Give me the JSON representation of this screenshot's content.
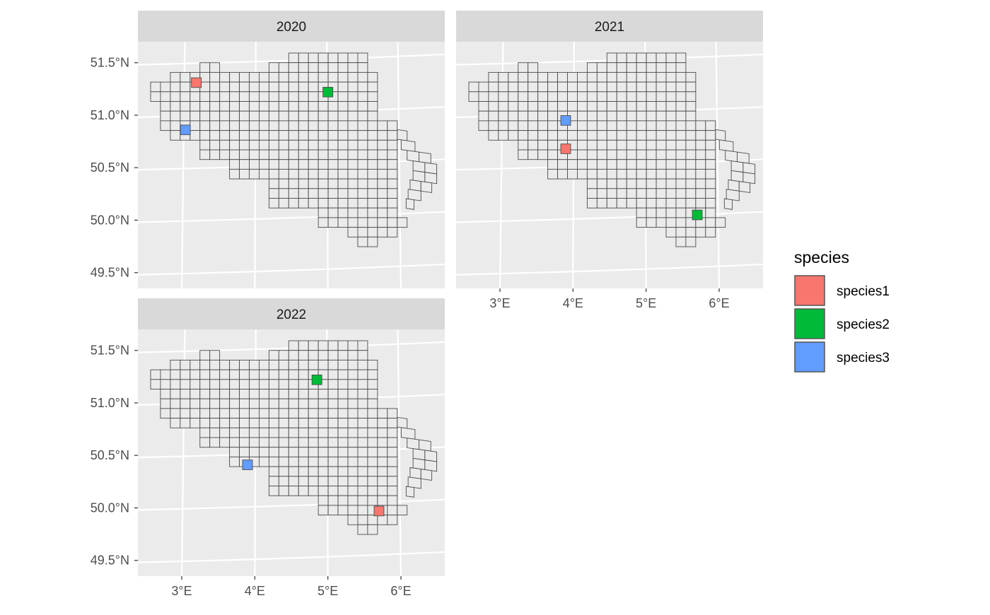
{
  "chart_data": {
    "type": "map",
    "title": "",
    "subtitle": "",
    "xlabel": "",
    "ylabel": "",
    "facet_var": "year",
    "facets": [
      "2020",
      "2021",
      "2022"
    ],
    "x_ticks": [
      "3°E",
      "4°E",
      "5°E",
      "6°E"
    ],
    "y_ticks": [
      "51.5°N",
      "51.0°N",
      "50.5°N",
      "50.0°N",
      "49.5°N"
    ],
    "xlim": [
      2.4,
      6.6
    ],
    "ylim": [
      49.35,
      51.7
    ],
    "legend": {
      "title": "species",
      "position": "right",
      "entries": [
        {
          "label": "species1",
          "color": "#F8766D"
        },
        {
          "label": "species2",
          "color": "#00BA38"
        },
        {
          "label": "species3",
          "color": "#619CFF"
        }
      ]
    },
    "occupied_cells": [
      {
        "year": "2020",
        "species": "species1",
        "lon": 3.2,
        "lat": 51.31
      },
      {
        "year": "2020",
        "species": "species2",
        "lon": 5.0,
        "lat": 51.22
      },
      {
        "year": "2020",
        "species": "species3",
        "lon": 3.05,
        "lat": 50.86
      },
      {
        "year": "2021",
        "species": "species1",
        "lon": 3.9,
        "lat": 50.68
      },
      {
        "year": "2021",
        "species": "species2",
        "lon": 5.7,
        "lat": 50.05
      },
      {
        "year": "2021",
        "species": "species3",
        "lon": 3.9,
        "lat": 50.95
      },
      {
        "year": "2022",
        "species": "species1",
        "lon": 5.7,
        "lat": 49.97
      },
      {
        "year": "2022",
        "species": "species2",
        "lon": 4.85,
        "lat": 51.22
      },
      {
        "year": "2022",
        "species": "species3",
        "lon": 3.9,
        "lat": 50.41
      }
    ],
    "grid_fill": "#EBEBEB",
    "grid_stroke": "#4D4D4D",
    "panel_background": "#EBEBEB",
    "strip_background": "#D9D9D9"
  }
}
